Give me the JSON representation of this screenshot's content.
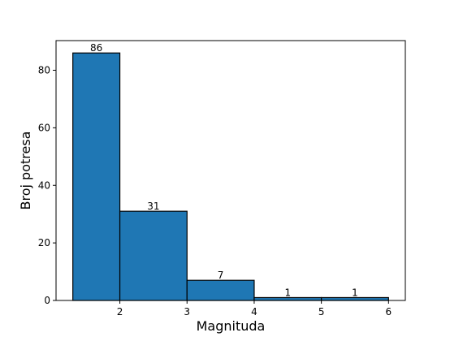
{
  "chart_data": {
    "type": "bar",
    "bins": [
      {
        "x0": 1.3,
        "x1": 2.0,
        "value": 86,
        "label": "86"
      },
      {
        "x0": 2.0,
        "x1": 3.0,
        "value": 31,
        "label": "31"
      },
      {
        "x0": 3.0,
        "x1": 4.0,
        "value": 7,
        "label": "7"
      },
      {
        "x0": 4.0,
        "x1": 5.0,
        "value": 1,
        "label": "1"
      },
      {
        "x0": 5.0,
        "x1": 6.0,
        "value": 1,
        "label": "1"
      }
    ],
    "xlabel": "Magnituda",
    "ylabel": "Broj potresa",
    "xlim": [
      1.05,
      6.25
    ],
    "ylim": [
      0,
      90.3
    ],
    "xticks": [
      2,
      3,
      4,
      5,
      6
    ],
    "yticks": [
      0,
      20,
      40,
      60,
      80
    ],
    "grid": false,
    "colors": {
      "bar": "#1f77b4",
      "edge": "#000000"
    }
  }
}
